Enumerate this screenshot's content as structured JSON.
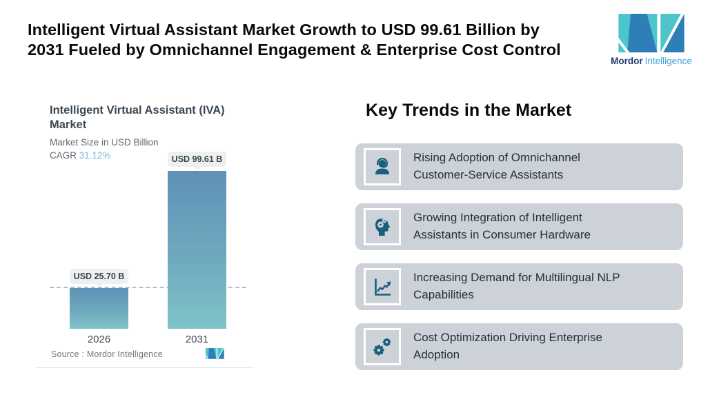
{
  "header": {
    "title_lines": [
      "Intelligent Virtual Assistant Market Growth to USD 99.61 Billion by",
      "2031 Fueled by Omnichannel Engagement & Enterprise Cost Control"
    ],
    "brand": {
      "word_primary": "Mordor",
      "word_secondary": "Intelligence",
      "colors": {
        "teal": "#4EC5CB",
        "blue": "#2E7FB7",
        "word_primary": "#1E3A70",
        "word_secondary": "#3F9FD9"
      }
    }
  },
  "chart_data": {
    "type": "bar",
    "title": "Intelligent Virtual Assistant (IVA) Market",
    "title_lines": [
      "Intelligent Virtual Assistant (IVA)",
      "Market"
    ],
    "subtitle": "Market Size in USD Billion",
    "cagr_label": "CAGR",
    "cagr_value": "31.12%",
    "categories": [
      "2026",
      "2031"
    ],
    "values": [
      25.7,
      99.61
    ],
    "value_labels": [
      "USD 25.70 B",
      "USD 99.61 B"
    ],
    "xlabel": "",
    "ylabel": "Market Size in USD Billion",
    "ylim": [
      0,
      100
    ],
    "grid": false,
    "legend": false,
    "annotations": [
      "dashed horizontal reference line at the 2026 market-size level"
    ],
    "source": "Source : Mordor Intelligence",
    "colors": {
      "bar_gradient_top": "#5F90B6",
      "bar_gradient_bottom": "#80C3C8",
      "dashed_line": "#A3C3DA",
      "cagr_accent": "#7AB3D6",
      "value_pill_bg": "#EDF0EE"
    }
  },
  "trends": {
    "heading": "Key Trends in the Market",
    "card_bg": "#CDD2D8",
    "icon_color": "#1A5E7E",
    "items": [
      {
        "icon": "support-agent-icon",
        "text": "Rising Adoption of Omnichannel Customer-Service Assistants",
        "lines": [
          "Rising Adoption of Omnichannel",
          "Customer-Service Assistants"
        ]
      },
      {
        "icon": "head-gears-icon",
        "text": "Growing Integration of Intelligent Assistants in Consumer Hardware",
        "lines": [
          "Growing Integration of Intelligent",
          "Assistants in Consumer Hardware"
        ]
      },
      {
        "icon": "line-chart-icon",
        "text": "Increasing Demand for Multilingual NLP Capabilities",
        "lines": [
          "Increasing Demand for Multilingual NLP",
          "Capabilities"
        ]
      },
      {
        "icon": "gears-icon",
        "text": "Cost Optimization Driving Enterprise Adoption",
        "lines": [
          "Cost Optimization Driving Enterprise",
          "Adoption"
        ]
      }
    ]
  }
}
